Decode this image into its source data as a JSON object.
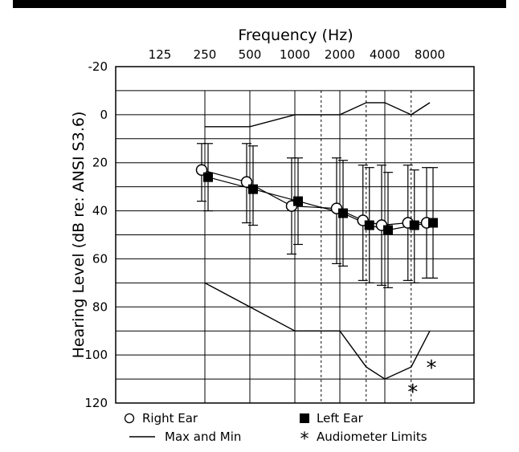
{
  "chart_data": {
    "type": "line",
    "xlabel": "Frequency (Hz)",
    "ylabel": "Hearing Level (dB re: ANSI S3.6)",
    "x_ticks": [
      "125",
      "250",
      "500",
      "1000",
      "2000",
      "4000",
      "8000"
    ],
    "y_ticks": [
      "-20",
      "0",
      "20",
      "40",
      "60",
      "80",
      "100",
      "120"
    ],
    "ylim": [
      -20,
      120
    ],
    "y_inverted": true,
    "x_scale": "log2",
    "grid": true,
    "series": [
      {
        "name": "Right Ear",
        "marker": "open-circle",
        "x": [
          250,
          500,
          1000,
          2000,
          3000,
          4000,
          6000,
          8000
        ],
        "mean": [
          23,
          28,
          38,
          39,
          44,
          46,
          45,
          45
        ],
        "err_low": [
          12,
          12,
          18,
          18,
          21,
          21,
          21,
          22
        ],
        "err_high": [
          36,
          45,
          58,
          62,
          69,
          71,
          69,
          68
        ]
      },
      {
        "name": "Left Ear",
        "marker": "filled-square",
        "x": [
          250,
          500,
          1000,
          2000,
          3000,
          4000,
          6000,
          8000
        ],
        "mean": [
          26,
          31,
          36,
          41,
          46,
          48,
          46,
          45
        ],
        "err_low": [
          12,
          13,
          18,
          19,
          22,
          24,
          23,
          22
        ],
        "err_high": [
          40,
          46,
          54,
          63,
          70,
          72,
          70,
          68
        ]
      },
      {
        "name": "Max and Min",
        "marker": "line",
        "segments": [
          {
            "x": [
              250,
              500,
              1000,
              1500,
              2000,
              3000,
              4000,
              6000,
              8000
            ],
            "y": [
              5,
              5,
              0,
              0,
              0,
              -5,
              -5,
              0,
              -5
            ]
          },
          {
            "x": [
              250,
              500,
              1000,
              1500,
              2000,
              3000,
              4000,
              6000,
              8000
            ],
            "y": [
              70,
              80,
              90,
              90,
              90,
              105,
              110,
              105,
              90
            ]
          }
        ]
      },
      {
        "name": "Audiometer Limits",
        "marker": "asterisk",
        "x": [
          6000,
          8000
        ],
        "y": [
          115,
          105
        ]
      }
    ],
    "legend": [
      {
        "symbol": "open-circle",
        "label": "Right Ear"
      },
      {
        "symbol": "filled-square",
        "label": "Left Ear"
      },
      {
        "symbol": "line",
        "label": "Max and Min"
      },
      {
        "symbol": "asterisk",
        "label": "Audiometer Limits"
      }
    ],
    "legend_placement": "bottom"
  }
}
